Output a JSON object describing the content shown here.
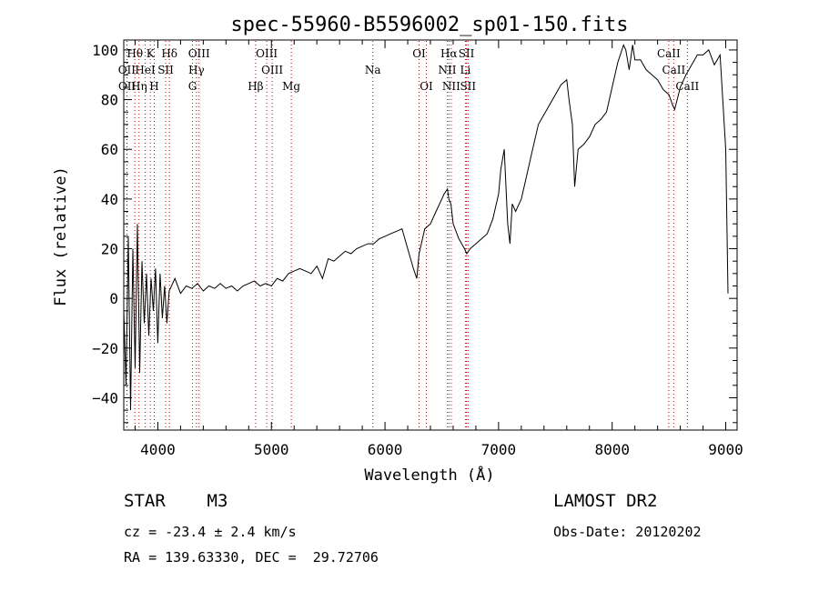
{
  "chart_data": {
    "type": "line",
    "title": "spec-55960-B5596002_sp01-150.fits",
    "xlabel": "Wavelength (Å)",
    "ylabel": "Flux (relative)",
    "xlim": [
      3700,
      9100
    ],
    "ylim": [
      -53,
      104
    ],
    "xticks": [
      4000,
      5000,
      6000,
      7000,
      8000,
      9000
    ],
    "yticks": [
      -40,
      -20,
      0,
      20,
      40,
      60,
      80,
      100
    ],
    "line_color": "#000000",
    "marker_color": "#cc0000",
    "series": [
      {
        "x": [
          3700,
          3720,
          3740,
          3760,
          3780,
          3800,
          3820,
          3840,
          3860,
          3880,
          3900,
          3920,
          3940,
          3960,
          3980,
          4000,
          4020,
          4040,
          4060,
          4080,
          4100,
          4150,
          4200,
          4250,
          4300,
          4350,
          4400,
          4450,
          4500,
          4550,
          4600,
          4650,
          4700,
          4750,
          4800,
          4850,
          4900,
          4950,
          5000,
          5050,
          5100,
          5150,
          5200,
          5250,
          5300,
          5350,
          5400,
          5450,
          5500,
          5550,
          5600,
          5650,
          5700,
          5750,
          5800,
          5850,
          5900,
          5950,
          6000,
          6050,
          6100,
          6150,
          6200,
          6250,
          6280,
          6300,
          6320,
          6350,
          6400,
          6450,
          6500,
          6520,
          6550,
          6562,
          6580,
          6600,
          6650,
          6700,
          6720,
          6750,
          6800,
          6850,
          6900,
          6950,
          7000,
          7020,
          7050,
          7080,
          7100,
          7120,
          7150,
          7200,
          7250,
          7300,
          7350,
          7400,
          7450,
          7500,
          7550,
          7600,
          7620,
          7650,
          7670,
          7700,
          7750,
          7800,
          7850,
          7900,
          7950,
          8000,
          8050,
          8100,
          8120,
          8150,
          8180,
          8200,
          8250,
          8300,
          8350,
          8400,
          8450,
          8500,
          8530,
          8550,
          8600,
          8650,
          8700,
          8750,
          8800,
          8850,
          8900,
          8950,
          9000,
          9020
        ],
        "y": [
          -5,
          -35,
          25,
          -45,
          20,
          -28,
          30,
          -30,
          15,
          -10,
          10,
          -15,
          8,
          -5,
          12,
          -18,
          10,
          -8,
          5,
          -10,
          3,
          8,
          2,
          5,
          4,
          6,
          3,
          5,
          4,
          6,
          4,
          5,
          3,
          5,
          6,
          7,
          5,
          6,
          5,
          8,
          7,
          10,
          11,
          12,
          11,
          10,
          13,
          8,
          16,
          15,
          17,
          19,
          18,
          20,
          21,
          22,
          22,
          24,
          25,
          26,
          27,
          28,
          20,
          12,
          8,
          18,
          22,
          28,
          30,
          35,
          40,
          42,
          44,
          40,
          38,
          30,
          24,
          20,
          18,
          20,
          22,
          24,
          26,
          32,
          42,
          52,
          60,
          30,
          22,
          38,
          35,
          40,
          50,
          60,
          70,
          74,
          78,
          82,
          86,
          88,
          80,
          70,
          45,
          60,
          62,
          65,
          70,
          72,
          75,
          85,
          95,
          102,
          100,
          92,
          102,
          96,
          96,
          92,
          90,
          88,
          84,
          82,
          78,
          76,
          85,
          90,
          94,
          98,
          98,
          100,
          94,
          98,
          60,
          2
        ]
      }
    ],
    "lines": [
      {
        "name": "Hθ",
        "wavelength": 3798,
        "row": 0
      },
      {
        "name": "K",
        "wavelength": 3934,
        "row": 0
      },
      {
        "name": "Hδ",
        "wavelength": 4102,
        "row": 0
      },
      {
        "name": "OIII",
        "wavelength": 4363,
        "row": 0
      },
      {
        "name": "OIII",
        "wavelength": 4959,
        "row": 0
      },
      {
        "name": "OI",
        "wavelength": 6300,
        "row": 0
      },
      {
        "name": "Hα",
        "wavelength": 6563,
        "row": 0
      },
      {
        "name": "SII",
        "wavelength": 6717,
        "row": 0
      },
      {
        "name": "CaII",
        "wavelength": 8498,
        "row": 0
      },
      {
        "name": "OII",
        "wavelength": 3727,
        "row": 1
      },
      {
        "name": "HeI",
        "wavelength": 3889,
        "row": 1
      },
      {
        "name": "SII",
        "wavelength": 4069,
        "row": 1
      },
      {
        "name": "Hγ",
        "wavelength": 4340,
        "row": 1
      },
      {
        "name": "OIII",
        "wavelength": 5007,
        "row": 1
      },
      {
        "name": "Na",
        "wavelength": 5893,
        "row": 1
      },
      {
        "name": "NII",
        "wavelength": 6548,
        "row": 1
      },
      {
        "name": "Li",
        "wavelength": 6708,
        "row": 1
      },
      {
        "name": "CaII",
        "wavelength": 8542,
        "row": 1
      },
      {
        "name": "OII",
        "wavelength": 3729,
        "row": 2
      },
      {
        "name": "Hη",
        "wavelength": 3835,
        "row": 2
      },
      {
        "name": "H",
        "wavelength": 3968,
        "row": 2
      },
      {
        "name": "G",
        "wavelength": 4305,
        "row": 2
      },
      {
        "name": "Hβ",
        "wavelength": 4861,
        "row": 2
      },
      {
        "name": "Mg",
        "wavelength": 5175,
        "row": 2
      },
      {
        "name": "OI",
        "wavelength": 6364,
        "row": 2
      },
      {
        "name": "NII",
        "wavelength": 6583,
        "row": 2
      },
      {
        "name": "SII",
        "wavelength": 6731,
        "row": 2
      },
      {
        "name": "CaII",
        "wavelength": 8662,
        "row": 2
      }
    ]
  },
  "footer": {
    "class_label": "STAR",
    "subclass": "M3",
    "cz": "cz = -23.4 ± 2.4 km/s",
    "coords": "RA = 139.63330, DEC =  29.72706",
    "survey": "LAMOST DR2",
    "obs_date": "Obs-Date: 20120202"
  }
}
